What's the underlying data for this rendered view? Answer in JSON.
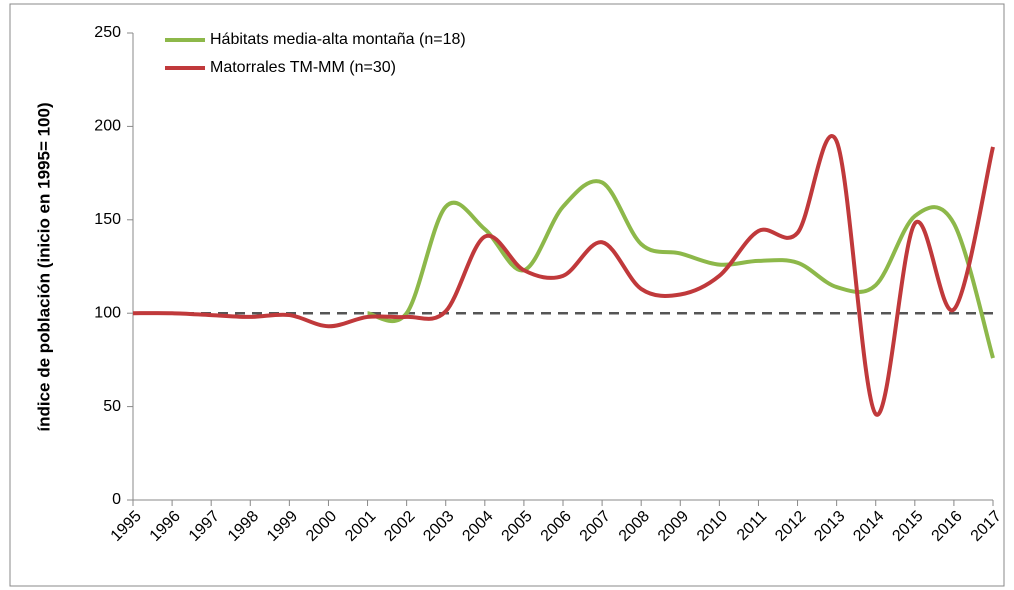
{
  "chart_data": {
    "type": "line",
    "y_label": "índice de población (inicio en 1995= 100)",
    "categories": [
      "1995",
      "1996",
      "1997",
      "1998",
      "1999",
      "2000",
      "2001",
      "2002",
      "2003",
      "2004",
      "2005",
      "2006",
      "2007",
      "2008",
      "2009",
      "2010",
      "2011",
      "2012",
      "2013",
      "2014",
      "2015",
      "2016",
      "2017"
    ],
    "series": [
      {
        "name": "Hábitats media-alta montaña (n=18)",
        "color": "#8db84a",
        "values": [
          null,
          null,
          null,
          null,
          null,
          null,
          100,
          100,
          157,
          145,
          123,
          157,
          170,
          137,
          132,
          126,
          128,
          127,
          114,
          115,
          152,
          148,
          76
        ]
      },
      {
        "name": "Matorrales TM-MM (n=30)",
        "color": "#c0393b",
        "values": [
          100,
          100,
          99,
          98,
          99,
          93,
          98,
          98,
          101,
          141,
          123,
          120,
          138,
          113,
          110,
          120,
          144,
          143,
          192,
          46,
          148,
          102,
          189
        ]
      }
    ],
    "reference_line": 100,
    "reference_color": "#555555",
    "ylim": [
      0,
      250
    ],
    "yticks": [
      0,
      50,
      100,
      150,
      200,
      250
    ],
    "legend": "top-left"
  }
}
